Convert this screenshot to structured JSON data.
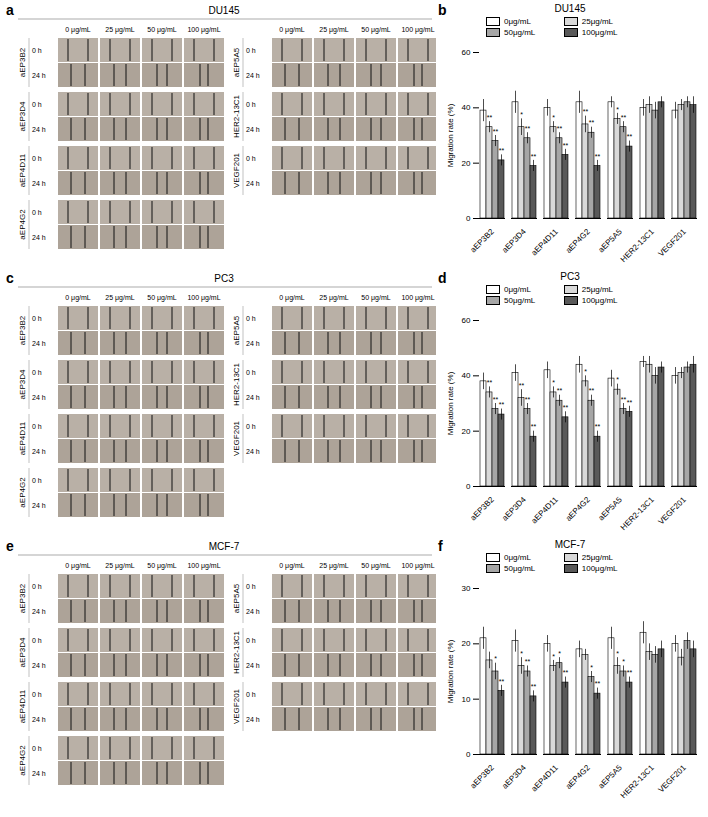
{
  "image_panels": [
    {
      "panel_label": "a",
      "title": "DU145",
      "columns": [
        "0 μg/mL",
        "25 μg/mL",
        "50 μg/mL",
        "100 μg/mL"
      ],
      "rows": [
        "0 h",
        "24 h"
      ],
      "groups": [
        [
          "aEP3B2",
          "aEP3D4",
          "aEP4D11",
          "aEP4G2"
        ],
        [
          "aEP5A5",
          "HER2-13C1",
          "VEGF201"
        ]
      ]
    },
    {
      "panel_label": "c",
      "title": "PC3",
      "columns": [
        "0 μg/mL",
        "25 μg/mL",
        "50 μg/mL",
        "100 μg/mL"
      ],
      "rows": [
        "0 h",
        "24 h"
      ],
      "groups": [
        [
          "aEP3B2",
          "aEP3D4",
          "aEP4D11",
          "aEP4G2"
        ],
        [
          "aEP5A5",
          "HER2-13C1",
          "VEGF201"
        ]
      ]
    },
    {
      "panel_label": "e",
      "title": "MCF-7",
      "columns": [
        "0 μg/mL",
        "25 μg/mL",
        "50 μg/mL",
        "100 μg/mL"
      ],
      "rows": [
        "0 h",
        "24 h"
      ],
      "groups": [
        [
          "aEP3B2",
          "aEP3D4",
          "aEP4D11",
          "aEP4G2"
        ],
        [
          "aEP5A5",
          "HER2-13C1",
          "VEGF201"
        ]
      ]
    }
  ],
  "chart_data": [
    {
      "panel_label": "b",
      "type": "bar",
      "title": "DU145",
      "y_label": "Migration rate (%)",
      "categories": [
        "aEP3B2",
        "aEP3D4",
        "aEP4D11",
        "aEP4G2",
        "aEP5A5",
        "HER2-13C1",
        "VEGF201"
      ],
      "series": [
        {
          "name": "0μg/mL",
          "color": "#ffffff",
          "values": [
            39,
            42,
            40,
            42,
            42,
            40,
            39
          ],
          "errors": [
            4,
            4,
            3,
            4,
            2,
            3,
            3
          ],
          "annotations": [
            null,
            null,
            null,
            null,
            null,
            null,
            null
          ]
        },
        {
          "name": "25μg/mL",
          "color": "#d9d9d9",
          "values": [
            33,
            33,
            33,
            34,
            36,
            41,
            41
          ],
          "errors": [
            2,
            3,
            2,
            3,
            2,
            3,
            2
          ],
          "annotations": [
            "**",
            "*",
            "*",
            "**",
            "*",
            null,
            null
          ]
        },
        {
          "name": "50μg/mL",
          "color": "#a6a6a6",
          "values": [
            28,
            29,
            29,
            31,
            33,
            39,
            42
          ],
          "errors": [
            2,
            2,
            2,
            2,
            2,
            3,
            2
          ],
          "annotations": [
            "**",
            "**",
            "**",
            "**",
            "**",
            null,
            null
          ]
        },
        {
          "name": "100μg/mL",
          "color": "#595959",
          "values": [
            21,
            19,
            23,
            19,
            26,
            42,
            41
          ],
          "errors": [
            2,
            2,
            2,
            2,
            2,
            2,
            3
          ],
          "annotations": [
            "**",
            "**",
            "**",
            "**",
            "**",
            null,
            null
          ]
        }
      ],
      "ylim": [
        0,
        60
      ],
      "yticks": [
        0,
        20,
        40,
        60
      ],
      "grid": false,
      "legend": "top"
    },
    {
      "panel_label": "d",
      "type": "bar",
      "title": "PC3",
      "y_label": "Migration rate (%)",
      "categories": [
        "aEP3B2",
        "aEP3D4",
        "aEP4D11",
        "aEP4G2",
        "aEP5A5",
        "HER2-13C1",
        "VEGF201"
      ],
      "series": [
        {
          "name": "0μg/mL",
          "color": "#ffffff",
          "values": [
            38,
            41,
            42,
            44,
            39,
            45,
            40
          ],
          "errors": [
            3,
            3,
            3,
            3,
            3,
            2,
            3
          ],
          "annotations": [
            null,
            null,
            null,
            null,
            null,
            null,
            null
          ]
        },
        {
          "name": "25μg/mL",
          "color": "#d9d9d9",
          "values": [
            34,
            32,
            34,
            38,
            35,
            44,
            41
          ],
          "errors": [
            2,
            3,
            2,
            2,
            2,
            3,
            2
          ],
          "annotations": [
            "**",
            "**",
            "*",
            "*",
            "*",
            null,
            null
          ]
        },
        {
          "name": "50μg/mL",
          "color": "#a6a6a6",
          "values": [
            28,
            28,
            31,
            31,
            28,
            40,
            43
          ],
          "errors": [
            2,
            2,
            2,
            2,
            2,
            3,
            2
          ],
          "annotations": [
            "**",
            "**",
            "**",
            "**",
            "**",
            null,
            null
          ]
        },
        {
          "name": "100μg/mL",
          "color": "#595959",
          "values": [
            26,
            18,
            25,
            18,
            27,
            43,
            44
          ],
          "errors": [
            2,
            2,
            2,
            2,
            2,
            2,
            3
          ],
          "annotations": [
            "**",
            "**",
            "**",
            "**",
            "**",
            null,
            null
          ]
        }
      ],
      "ylim": [
        0,
        60
      ],
      "yticks": [
        0,
        20,
        40,
        60
      ],
      "grid": false,
      "legend": "top"
    },
    {
      "panel_label": "f",
      "type": "bar",
      "title": "MCF-7",
      "y_label": "Migration rate (%)",
      "categories": [
        "aEP3B2",
        "aEP3D4",
        "aEP4D11",
        "aEP4G2",
        "aEP5A5",
        "HER2-13C1",
        "VEGF201"
      ],
      "series": [
        {
          "name": "0μg/mL",
          "color": "#ffffff",
          "values": [
            21,
            20.5,
            20,
            19,
            21,
            22,
            20
          ],
          "errors": [
            2,
            2,
            1.5,
            1.5,
            2,
            2,
            1.5
          ],
          "annotations": [
            null,
            null,
            null,
            null,
            null,
            null,
            null
          ]
        },
        {
          "name": "25μg/mL",
          "color": "#d9d9d9",
          "values": [
            17,
            16,
            16,
            18,
            16,
            18.5,
            17.5
          ],
          "errors": [
            1.5,
            1.5,
            1,
            1,
            1.5,
            1.5,
            1.5
          ],
          "annotations": [
            null,
            "*",
            "*",
            null,
            "*",
            null,
            null
          ]
        },
        {
          "name": "50μg/mL",
          "color": "#a6a6a6",
          "values": [
            15,
            15,
            16.5,
            14,
            15,
            18,
            20.5
          ],
          "errors": [
            1.5,
            1,
            1,
            1,
            1,
            1.5,
            1.5
          ],
          "annotations": [
            "*",
            "**",
            "*",
            "*",
            "*",
            null,
            null
          ]
        },
        {
          "name": "100μg/mL",
          "color": "#595959",
          "values": [
            11.5,
            10.5,
            13,
            11,
            13,
            19,
            19
          ],
          "errors": [
            1,
            1,
            1,
            1,
            1,
            1.5,
            1.5
          ],
          "annotations": [
            "**",
            "**",
            "**",
            "**",
            "**",
            null,
            null
          ]
        }
      ],
      "ylim": [
        0,
        30
      ],
      "yticks": [
        0,
        10,
        20,
        30
      ],
      "grid": false,
      "legend": "top"
    }
  ]
}
